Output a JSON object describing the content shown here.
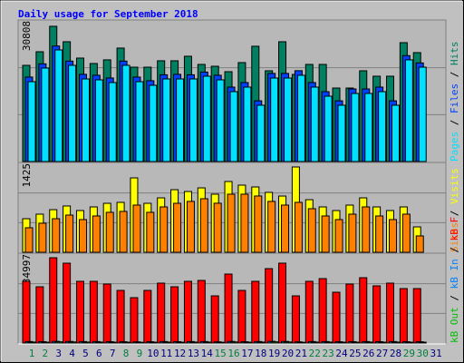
{
  "title": "Daily usage for September 2018",
  "legend_separator": " / ",
  "categories": [
    "1",
    "2",
    "3",
    "4",
    "5",
    "6",
    "7",
    "8",
    "9",
    "10",
    "11",
    "12",
    "13",
    "14",
    "15",
    "16",
    "17",
    "18",
    "19",
    "20",
    "21",
    "22",
    "23",
    "24",
    "25",
    "26",
    "27",
    "28",
    "29",
    "30",
    "31"
  ],
  "category_colors": [
    "#008040",
    "#008040",
    "#000080",
    "#000080",
    "#000080",
    "#000080",
    "#000080",
    "#008040",
    "#008040",
    "#000080",
    "#000080",
    "#000080",
    "#000080",
    "#000080",
    "#008040",
    "#008040",
    "#000080",
    "#000080",
    "#000080",
    "#000080",
    "#000080",
    "#008040",
    "#008040",
    "#000080",
    "#000080",
    "#000080",
    "#000080",
    "#000080",
    "#008040",
    "#008040",
    "#000080"
  ],
  "chart_data": [
    {
      "type": "bar",
      "ylim": [
        0,
        30808
      ],
      "yticks": [
        30808
      ],
      "grid": true,
      "series": [
        {
          "name": "Hits",
          "color": "#008060",
          "values": [
            21070,
            24050,
            29620,
            26240,
            22660,
            21470,
            22270,
            24850,
            20670,
            20670,
            22070,
            22070,
            23060,
            21270,
            20870,
            19680,
            21670,
            25250,
            19880,
            26240,
            19080,
            21270,
            21270,
            16100,
            16100,
            19880,
            18690,
            18690,
            26040,
            23860,
            null
          ]
        },
        {
          "name": "Files",
          "color": "#0040ff",
          "values": [
            18500,
            21400,
            25300,
            22000,
            19100,
            18900,
            18300,
            22000,
            18500,
            17700,
            19000,
            19100,
            19000,
            19600,
            18900,
            16300,
            17300,
            13300,
            19300,
            19300,
            19900,
            17300,
            15300,
            13300,
            15900,
            15900,
            16300,
            13300,
            23200,
            21600,
            null
          ]
        },
        {
          "name": "Pages",
          "color": "#00e0ff",
          "values": [
            17490,
            20480,
            24450,
            21070,
            18090,
            17890,
            17300,
            21070,
            17490,
            16700,
            18090,
            18090,
            18090,
            18690,
            17890,
            15310,
            16300,
            12330,
            18290,
            18290,
            18890,
            16300,
            14310,
            12330,
            14910,
            14910,
            15310,
            12330,
            22270,
            20670,
            null
          ]
        }
      ]
    },
    {
      "type": "bar",
      "ylim": [
        0,
        1425
      ],
      "yticks": [
        1425
      ],
      "grid": true,
      "series": [
        {
          "name": "Visits",
          "color": "#ffff00",
          "values": [
            538,
            611,
            683,
            742,
            669,
            727,
            785,
            800,
            1192,
            785,
            872,
            1003,
            974,
            1032,
            931,
            1134,
            1076,
            1047,
            960,
            901,
            1367,
            843,
            727,
            669,
            756,
            872,
            727,
            669,
            727,
            407,
            null
          ]
        },
        {
          "name": "Sites",
          "color": "#ff8000",
          "values": [
            393,
            466,
            538,
            596,
            524,
            582,
            640,
            655,
            756,
            640,
            727,
            785,
            815,
            858,
            786,
            931,
            931,
            902,
            815,
            756,
            800,
            698,
            582,
            524,
            611,
            727,
            582,
            524,
            611,
            262,
            null
          ]
        }
      ]
    },
    {
      "type": "bar",
      "ylim": [
        0,
        834997
      ],
      "yticks": [
        834997
      ],
      "grid": true,
      "series": [
        {
          "name": "kB F",
          "color": "#ff0000",
          "values": [
            579400,
            528200,
            800900,
            749800,
            579400,
            579400,
            553800,
            494200,
            426000,
            494200,
            562300,
            528200,
            579400,
            587900,
            443000,
            647500,
            494200,
            579400,
            698600,
            749800,
            443000,
            579400,
            604900,
            477100,
            553800,
            613400,
            536800,
            562300,
            511200,
            511200,
            null
          ]
        },
        {
          "name": "kB In",
          "color": "#0080ff",
          "values": [
            14000,
            13000,
            16000,
            15000,
            14000,
            14000,
            13000,
            12000,
            11000,
            12000,
            14000,
            13000,
            14000,
            14000,
            11000,
            15000,
            12000,
            14000,
            16000,
            15000,
            11000,
            14000,
            14000,
            12000,
            13000,
            14000,
            13000,
            14000,
            12000,
            12000,
            null
          ]
        },
        {
          "name": "kB Out",
          "color": "#00c000",
          "values": [
            9000,
            8000,
            11000,
            10000,
            9000,
            9000,
            8000,
            8000,
            7000,
            8000,
            9000,
            8000,
            9000,
            9000,
            7000,
            10000,
            8000,
            9000,
            11000,
            10000,
            7000,
            9000,
            9000,
            8000,
            8000,
            9000,
            8000,
            9000,
            8000,
            8000,
            null
          ]
        }
      ]
    }
  ]
}
